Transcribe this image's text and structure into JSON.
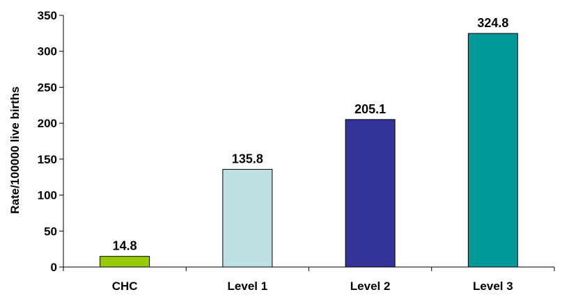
{
  "chart_data": {
    "type": "bar",
    "categories": [
      "CHC",
      "Level 1",
      "Level 2",
      "Level 3"
    ],
    "values": [
      14.8,
      135.8,
      205.1,
      324.8
    ],
    "value_labels": [
      "14.8",
      "135.8",
      "205.1",
      "324.8"
    ],
    "colors": [
      "#99cc00",
      "#bde0e2",
      "#333399",
      "#009999"
    ],
    "title": "",
    "xlabel": "",
    "ylabel": "Rate/100000 live births",
    "ylim": [
      0,
      350
    ],
    "yticks": [
      0,
      50,
      100,
      150,
      200,
      250,
      300,
      350
    ],
    "grid": false,
    "legend": "none"
  }
}
